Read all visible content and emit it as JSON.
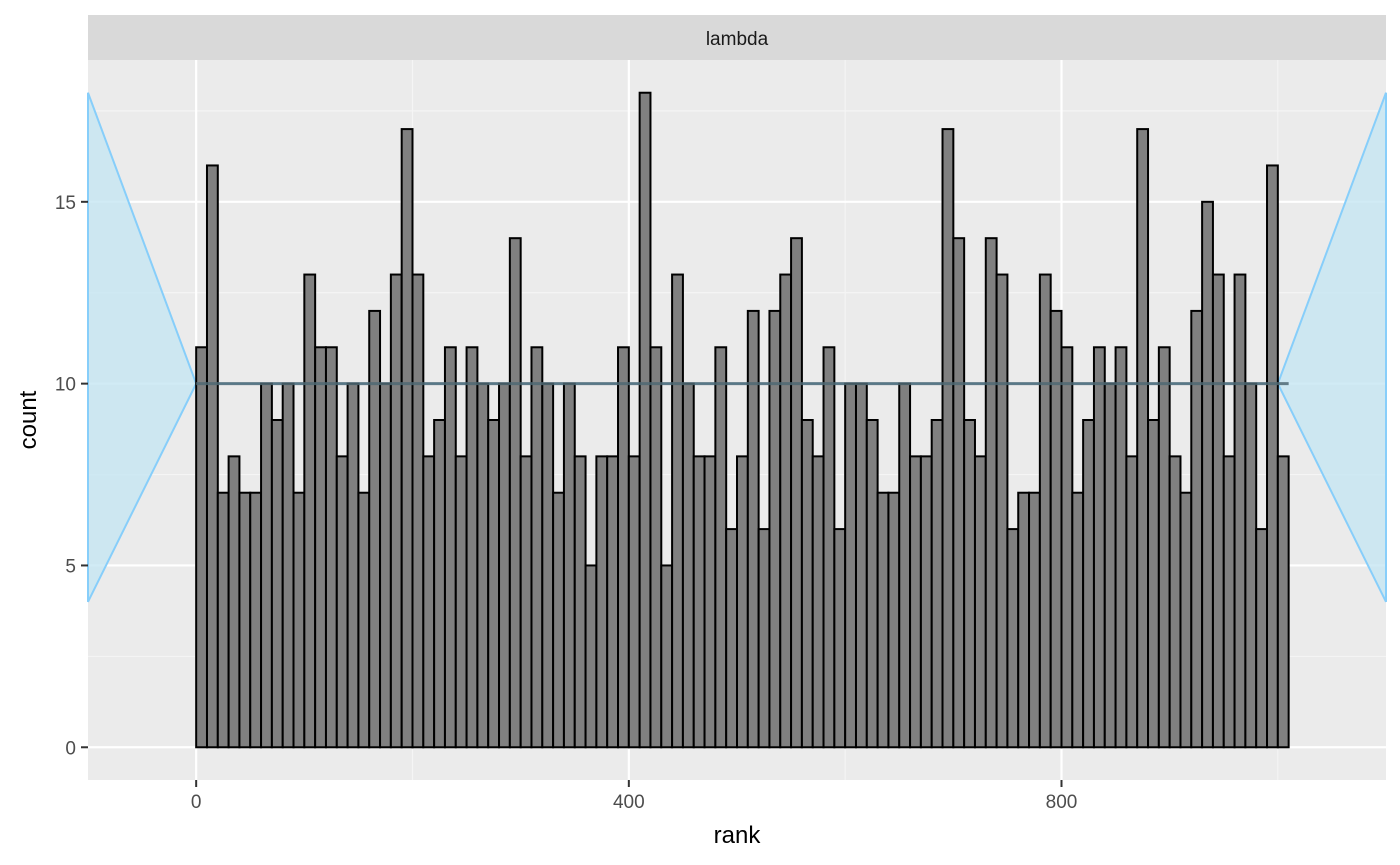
{
  "chart_data": {
    "type": "bar",
    "facet_label": "lambda",
    "xlabel": "rank",
    "ylabel": "count",
    "xlim": [
      -100,
      1100
    ],
    "ylim": [
      -0.9,
      18.9
    ],
    "x_ticks": [
      0,
      400,
      800
    ],
    "x_tick_labels": [
      "0",
      "400",
      "800"
    ],
    "y_ticks": [
      0,
      5,
      10,
      15
    ],
    "y_tick_labels": [
      "0",
      "5",
      "10",
      "15"
    ],
    "grid": true,
    "bin_width": 10,
    "bin_start": 0,
    "values": [
      11,
      16,
      7,
      8,
      7,
      7,
      10,
      9,
      10,
      7,
      13,
      11,
      11,
      8,
      10,
      7,
      12,
      10,
      13,
      17,
      13,
      8,
      9,
      11,
      8,
      11,
      10,
      9,
      10,
      14,
      8,
      11,
      10,
      7,
      10,
      8,
      5,
      8,
      8,
      11,
      8,
      18,
      11,
      5,
      13,
      10,
      8,
      8,
      11,
      6,
      8,
      12,
      6,
      12,
      13,
      14,
      9,
      8,
      11,
      6,
      10,
      10,
      9,
      7,
      7,
      10,
      8,
      8,
      9,
      17,
      14,
      9,
      8,
      14,
      13,
      6,
      7,
      7,
      13,
      12,
      11,
      7,
      9,
      11,
      10,
      11,
      8,
      17,
      9,
      11,
      8,
      7,
      12,
      15,
      13,
      8,
      13,
      10,
      6,
      16,
      8
    ],
    "reference_line": 10,
    "confidence_band": {
      "x": [
        -100,
        0,
        1000,
        1100,
        1100,
        1000,
        0,
        -100
      ],
      "y": [
        4,
        10,
        10,
        4,
        18,
        10,
        10,
        18
      ]
    },
    "colors": {
      "panel_background": "#ebebeb",
      "grid_major": "#ffffff",
      "grid_minor": "#f5f5f5",
      "strip_background": "#d9d9d9",
      "bar_fill": "#808080",
      "bar_outline": "#000000",
      "band_fill": "#c6e6f3",
      "band_outline": "#87cefa",
      "reference_line": "#4f6873"
    }
  }
}
